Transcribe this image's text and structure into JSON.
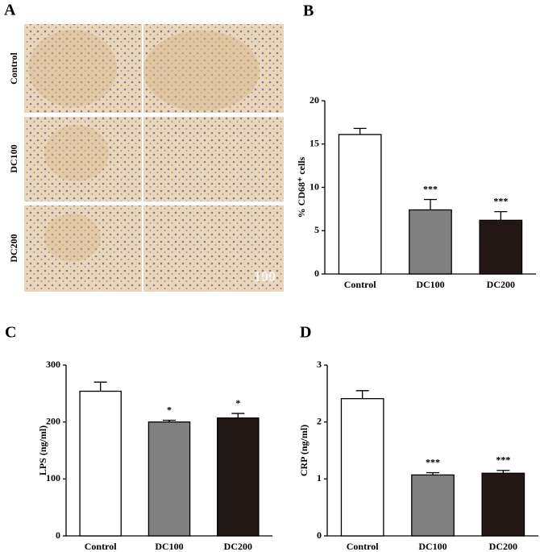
{
  "panel_a": {
    "label": "A",
    "rows": [
      "Control",
      "DC100",
      "DC200"
    ],
    "scale_label": "100"
  },
  "chart_data": [
    {
      "type": "bar",
      "panel": "B",
      "y_label": "% CD68⁺ cells",
      "categories": [
        "Control",
        "DC100",
        "DC200"
      ],
      "values": [
        16.1,
        7.4,
        6.2
      ],
      "errors": [
        0.7,
        1.2,
        1.0
      ],
      "annotations": [
        null,
        "***",
        "***"
      ],
      "colors": [
        "#ffffff",
        "#808080",
        "#231815"
      ],
      "ylim": [
        0,
        20
      ],
      "yticks": [
        0,
        5,
        10,
        15,
        20
      ]
    },
    {
      "type": "bar",
      "panel": "C",
      "y_label": "LPS (ng/ml)",
      "categories": [
        "Control",
        "DC100",
        "DC200"
      ],
      "values": [
        254,
        200,
        207
      ],
      "errors": [
        16,
        3,
        8
      ],
      "annotations": [
        null,
        "*",
        "*"
      ],
      "colors": [
        "#ffffff",
        "#808080",
        "#231815"
      ],
      "ylim": [
        0,
        300
      ],
      "yticks": [
        0,
        100,
        200,
        300
      ]
    },
    {
      "type": "bar",
      "panel": "D",
      "y_label": "CRP (ng/ml)",
      "categories": [
        "Control",
        "DC100",
        "DC200"
      ],
      "values": [
        2.41,
        1.07,
        1.1
      ],
      "errors": [
        0.14,
        0.04,
        0.05
      ],
      "annotations": [
        null,
        "***",
        "***"
      ],
      "colors": [
        "#ffffff",
        "#808080",
        "#231815"
      ],
      "ylim": [
        0,
        3
      ],
      "yticks": [
        0,
        1,
        2,
        3
      ]
    }
  ]
}
